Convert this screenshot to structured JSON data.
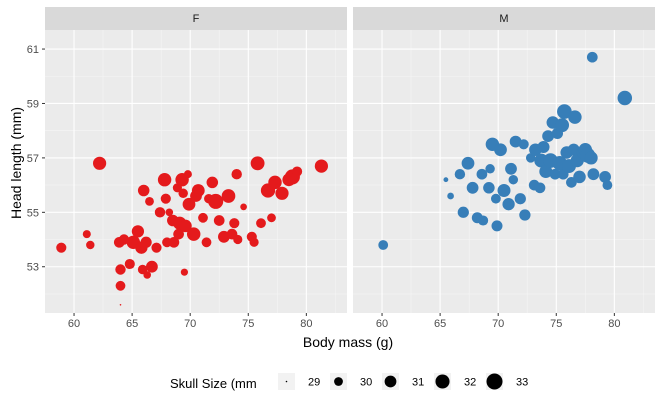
{
  "chart_data": {
    "type": "scatter",
    "xlabel": "Body mass (g)",
    "ylabel": "Head length (mm)",
    "xlim": [
      57.5,
      83.5
    ],
    "ylim": [
      51.3,
      61.7
    ],
    "x_ticks": [
      "60",
      "65",
      "70",
      "75",
      "80"
    ],
    "y_ticks": [
      "53",
      "55",
      "57",
      "59",
      "61"
    ],
    "grid": true,
    "facets": [
      {
        "name": "F",
        "color": "#e41a1c",
        "points": [
          [
            58.9,
            53.7,
            30.4
          ],
          [
            61.1,
            54.2,
            29.8
          ],
          [
            61.4,
            53.8,
            29.9
          ],
          [
            62.2,
            56.8,
            31.6
          ],
          [
            63.9,
            53.9,
            30.6
          ],
          [
            64.0,
            52.9,
            30.5
          ],
          [
            64.0,
            52.3,
            30.3
          ],
          [
            64.0,
            51.6,
            29.0
          ],
          [
            64.3,
            54.0,
            30.5
          ],
          [
            64.8,
            53.1,
            30.4
          ],
          [
            65.1,
            53.9,
            31.7
          ],
          [
            65.5,
            54.3,
            31.2
          ],
          [
            65.8,
            53.7,
            31.2
          ],
          [
            65.9,
            52.9,
            30.2
          ],
          [
            66.0,
            55.8,
            30.9
          ],
          [
            66.2,
            53.9,
            30.8
          ],
          [
            66.3,
            52.7,
            29.7
          ],
          [
            66.5,
            55.4,
            30.0
          ],
          [
            66.7,
            53.0,
            31.0
          ],
          [
            67.1,
            53.7,
            30.4
          ],
          [
            67.4,
            55.0,
            30.5
          ],
          [
            67.8,
            56.2,
            31.7
          ],
          [
            67.9,
            55.5,
            30.4
          ],
          [
            68.0,
            53.9,
            30.3
          ],
          [
            68.2,
            55.0,
            29.7
          ],
          [
            68.5,
            54.7,
            30.9
          ],
          [
            68.6,
            53.9,
            30.6
          ],
          [
            68.9,
            55.9,
            30.1
          ],
          [
            69.0,
            54.2,
            30.6
          ],
          [
            69.1,
            54.6,
            31.6
          ],
          [
            69.3,
            56.2,
            31.7
          ],
          [
            69.4,
            55.7,
            30.2
          ],
          [
            69.5,
            52.8,
            29.6
          ],
          [
            69.6,
            54.5,
            31.3
          ],
          [
            69.8,
            56.4,
            29.8
          ],
          [
            69.9,
            55.3,
            31.4
          ],
          [
            70.3,
            54.2,
            31.7
          ],
          [
            70.5,
            55.6,
            31.0
          ],
          [
            70.7,
            55.8,
            31.4
          ],
          [
            71.1,
            54.8,
            30.3
          ],
          [
            71.4,
            53.9,
            30.3
          ],
          [
            71.6,
            55.5,
            30.2
          ],
          [
            71.9,
            56.1,
            30.9
          ],
          [
            72.2,
            55.4,
            32.5
          ],
          [
            72.5,
            54.7,
            30.6
          ],
          [
            72.9,
            54.1,
            31.0
          ],
          [
            73.3,
            55.6,
            31.8
          ],
          [
            73.6,
            54.2,
            30.6
          ],
          [
            73.8,
            54.6,
            30.4
          ],
          [
            74.0,
            56.4,
            30.5
          ],
          [
            74.1,
            54.0,
            30.1
          ],
          [
            74.6,
            55.2,
            29.5
          ],
          [
            75.3,
            54.1,
            30.4
          ],
          [
            75.5,
            53.9,
            30.1
          ],
          [
            75.8,
            56.8,
            31.9
          ],
          [
            76.1,
            54.6,
            30.3
          ],
          [
            76.7,
            55.8,
            32.1
          ],
          [
            77.0,
            54.8,
            30.0
          ],
          [
            77.3,
            56.1,
            31.7
          ],
          [
            77.9,
            55.7,
            31.6
          ],
          [
            78.5,
            56.2,
            31.5
          ],
          [
            78.8,
            56.3,
            32.5
          ],
          [
            79.2,
            56.5,
            30.4
          ],
          [
            81.3,
            56.7,
            31.6
          ]
        ]
      },
      {
        "name": "M",
        "color": "#377eb8",
        "points": [
          [
            60.1,
            53.8,
            30.3
          ],
          [
            65.5,
            56.2,
            29.2
          ],
          [
            65.9,
            55.6,
            29.5
          ],
          [
            66.7,
            56.4,
            30.5
          ],
          [
            67.0,
            55.0,
            30.8
          ],
          [
            67.4,
            56.8,
            31.4
          ],
          [
            67.8,
            55.9,
            31.0
          ],
          [
            68.2,
            54.8,
            30.7
          ],
          [
            68.6,
            56.4,
            30.6
          ],
          [
            68.7,
            54.7,
            30.4
          ],
          [
            69.2,
            55.9,
            30.9
          ],
          [
            69.3,
            56.6,
            30.2
          ],
          [
            69.5,
            57.5,
            31.7
          ],
          [
            69.8,
            55.5,
            30.3
          ],
          [
            69.9,
            54.5,
            30.7
          ],
          [
            70.2,
            57.3,
            31.4
          ],
          [
            70.5,
            55.8,
            31.5
          ],
          [
            70.9,
            55.3,
            31.2
          ],
          [
            71.1,
            56.6,
            31.0
          ],
          [
            71.3,
            56.2,
            30.2
          ],
          [
            71.5,
            57.6,
            31.0
          ],
          [
            71.9,
            55.5,
            30.8
          ],
          [
            72.2,
            57.5,
            30.4
          ],
          [
            72.3,
            54.9,
            30.8
          ],
          [
            72.8,
            57.0,
            30.2
          ],
          [
            73.1,
            56.0,
            30.6
          ],
          [
            73.2,
            57.3,
            31.3
          ],
          [
            73.6,
            55.9,
            30.6
          ],
          [
            73.7,
            56.9,
            31.9
          ],
          [
            73.9,
            57.4,
            31.1
          ],
          [
            74.1,
            56.5,
            31.5
          ],
          [
            74.3,
            57.8,
            31.0
          ],
          [
            74.5,
            56.9,
            32.3
          ],
          [
            74.7,
            58.3,
            31.3
          ],
          [
            74.9,
            56.4,
            30.6
          ],
          [
            75.1,
            57.9,
            30.8
          ],
          [
            75.3,
            56.8,
            32.2
          ],
          [
            75.5,
            58.2,
            31.9
          ],
          [
            75.6,
            56.4,
            30.6
          ],
          [
            75.7,
            58.7,
            32.3
          ],
          [
            75.9,
            57.2,
            31.3
          ],
          [
            76.1,
            56.7,
            31.9
          ],
          [
            76.3,
            56.1,
            30.6
          ],
          [
            76.5,
            57.3,
            31.1
          ],
          [
            76.6,
            58.5,
            31.7
          ],
          [
            76.8,
            56.9,
            31.6
          ],
          [
            77.0,
            56.3,
            31.3
          ],
          [
            77.3,
            57.2,
            31.2
          ],
          [
            77.5,
            57.3,
            31.7
          ],
          [
            77.7,
            57.1,
            32.5
          ],
          [
            78.0,
            57.0,
            31.6
          ],
          [
            78.1,
            60.7,
            30.6
          ],
          [
            78.2,
            56.4,
            31.0
          ],
          [
            79.2,
            56.3,
            31.0
          ],
          [
            79.4,
            56.0,
            30.3
          ],
          [
            80.9,
            59.2,
            32.2
          ]
        ]
      }
    ],
    "size_legend": {
      "title": "Skull Size (mm",
      "values": [
        29,
        30,
        31,
        32,
        33
      ]
    }
  }
}
